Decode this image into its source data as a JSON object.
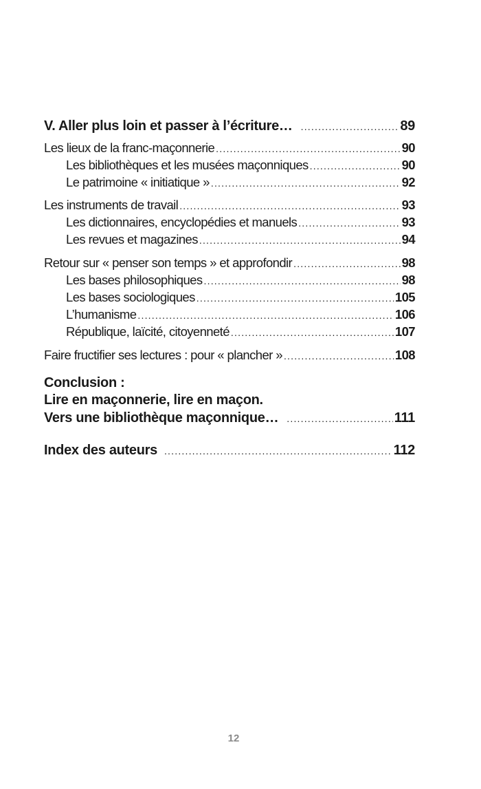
{
  "toc": [
    {
      "label": "V. Aller plus loin et passer à l’écriture…",
      "page": "89"
    },
    {
      "label": "Les lieux de la franc-maçonnerie",
      "page": "90"
    },
    {
      "label": "Les bibliothèques et les musées maçonniques",
      "page": "90"
    },
    {
      "label": "Le patrimoine « initiatique »",
      "page": "92"
    },
    {
      "label": "Les instruments de travail",
      "page": "93"
    },
    {
      "label": "Les dictionnaires, encyclopédies et manuels",
      "page": "93"
    },
    {
      "label": "Les revues et magazines",
      "page": "94"
    },
    {
      "label": "Retour sur « penser son temps » et approfondir",
      "page": "98"
    },
    {
      "label": "Les bases philosophiques",
      "page": "98"
    },
    {
      "label": "Les bases sociologiques",
      "page": "105"
    },
    {
      "label": "L’humanisme",
      "page": "106"
    },
    {
      "label": "République, laïcité, citoyenneté",
      "page": "107"
    },
    {
      "label": "Faire fructifier ses lectures : pour « plancher »",
      "page": "108"
    }
  ],
  "conclusion": {
    "line1": "Conclusion :",
    "line2": "Lire en maçonnerie, lire en maçon.",
    "line3": "Vers une bibliothèque maçonnique…",
    "page": "111"
  },
  "index": {
    "label": "Index des auteurs",
    "page": "112"
  },
  "folio": "12"
}
